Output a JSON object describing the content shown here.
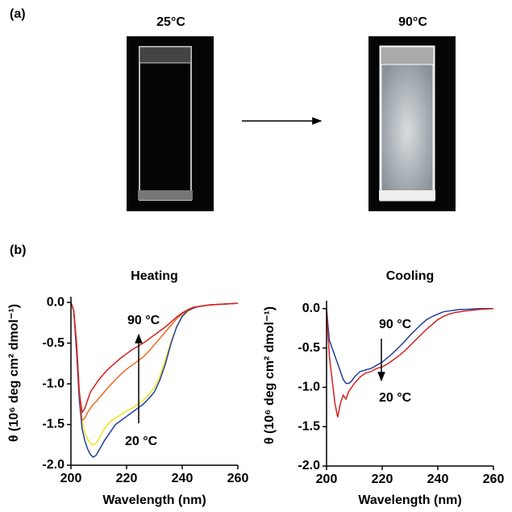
{
  "figure": {
    "panel_a_label": "(a)",
    "photos": [
      {
        "label": "25°C"
      },
      {
        "label": "90°C"
      }
    ],
    "panel_b_label": "(b)"
  },
  "chart_data": [
    {
      "type": "line",
      "title": "Heating",
      "x_label": "Wavelength (nm)",
      "y_label": "θ (10⁶ deg cm² dmol⁻¹)",
      "x": [
        200,
        201,
        202,
        203,
        204,
        205,
        206,
        207,
        208,
        209,
        210,
        212,
        214,
        216,
        218,
        220,
        222,
        224,
        226,
        228,
        230,
        232,
        234,
        236,
        238,
        240,
        242,
        244,
        246,
        248,
        250,
        255,
        260
      ],
      "series": [
        {
          "color": "#f2e61a",
          "values": [
            0,
            -0.1,
            -0.55,
            -1.1,
            -1.45,
            -1.6,
            -1.68,
            -1.73,
            -1.75,
            -1.73,
            -1.68,
            -1.55,
            -1.47,
            -1.42,
            -1.38,
            -1.33,
            -1.3,
            -1.25,
            -1.2,
            -1.13,
            -1.05,
            -0.9,
            -0.7,
            -0.48,
            -0.3,
            -0.18,
            -0.11,
            -0.07,
            -0.05,
            -0.04,
            -0.03,
            -0.02,
            -0.01
          ]
        },
        {
          "color": "#1f3fa0",
          "values": [
            0,
            -0.1,
            -0.6,
            -1.2,
            -1.55,
            -1.7,
            -1.8,
            -1.87,
            -1.9,
            -1.88,
            -1.82,
            -1.7,
            -1.6,
            -1.5,
            -1.45,
            -1.4,
            -1.35,
            -1.3,
            -1.25,
            -1.18,
            -1.1,
            -0.95,
            -0.75,
            -0.5,
            -0.3,
            -0.17,
            -0.1,
            -0.07,
            -0.05,
            -0.04,
            -0.03,
            -0.02,
            -0.01
          ]
        },
        {
          "color": "#ef6a1c",
          "values": [
            0,
            -0.1,
            -0.5,
            -1.1,
            -1.45,
            -1.42,
            -1.35,
            -1.3,
            -1.25,
            -1.22,
            -1.18,
            -1.1,
            -1.02,
            -0.95,
            -0.88,
            -0.82,
            -0.77,
            -0.72,
            -0.67,
            -0.6,
            -0.52,
            -0.44,
            -0.36,
            -0.28,
            -0.2,
            -0.14,
            -0.09,
            -0.06,
            -0.05,
            -0.04,
            -0.03,
            -0.02,
            -0.01
          ]
        },
        {
          "color": "#d62020",
          "values": [
            0,
            -0.1,
            -0.5,
            -1.1,
            -1.35,
            -1.3,
            -1.2,
            -1.1,
            -1.05,
            -1.0,
            -0.95,
            -0.87,
            -0.8,
            -0.74,
            -0.68,
            -0.63,
            -0.58,
            -0.54,
            -0.5,
            -0.45,
            -0.4,
            -0.35,
            -0.3,
            -0.24,
            -0.18,
            -0.13,
            -0.09,
            -0.06,
            -0.05,
            -0.04,
            -0.03,
            -0.02,
            -0.01
          ]
        }
      ],
      "annotations": [
        {
          "text": "90 °C",
          "color": "#d62020"
        },
        {
          "text": "20 °C",
          "color": "#1f3fa0"
        }
      ],
      "xlim": [
        200,
        260
      ],
      "xticks": [
        200,
        220,
        240,
        260
      ],
      "ylim": [
        -2.0,
        0.07
      ],
      "yticks": [
        {
          "value": 0,
          "label": "0.0"
        },
        {
          "value": -0.5,
          "label": "-0.5"
        },
        {
          "value": -1.0,
          "label": "-1.0"
        },
        {
          "value": -1.5,
          "label": "-1.5"
        },
        {
          "value": -2.0,
          "label": "-2.0"
        }
      ]
    },
    {
      "type": "line",
      "title": "Cooling",
      "x_label": "Wavelength (nm)",
      "y_label": "θ (10⁶ deg cm² dmol⁻¹)",
      "x": [
        200,
        201,
        202,
        203,
        204,
        205,
        206,
        207,
        208,
        209,
        210,
        212,
        214,
        216,
        218,
        220,
        222,
        224,
        226,
        228,
        230,
        232,
        234,
        236,
        238,
        240,
        242,
        244,
        246,
        248,
        250,
        255,
        260
      ],
      "series": [
        {
          "color": "#1f3fa0",
          "values": [
            0,
            -0.4,
            -0.5,
            -0.6,
            -0.7,
            -0.8,
            -0.9,
            -0.95,
            -0.95,
            -0.92,
            -0.87,
            -0.8,
            -0.78,
            -0.76,
            -0.72,
            -0.68,
            -0.62,
            -0.56,
            -0.49,
            -0.42,
            -0.34,
            -0.27,
            -0.2,
            -0.14,
            -0.1,
            -0.07,
            -0.04,
            -0.03,
            -0.02,
            -0.01,
            -0.01,
            0,
            0
          ]
        },
        {
          "color": "#d62020",
          "values": [
            0,
            -0.6,
            -0.9,
            -1.2,
            -1.38,
            -1.2,
            -1.1,
            -1.15,
            -1.05,
            -1.0,
            -0.95,
            -0.87,
            -0.82,
            -0.8,
            -0.76,
            -0.74,
            -0.7,
            -0.65,
            -0.6,
            -0.54,
            -0.47,
            -0.4,
            -0.33,
            -0.26,
            -0.2,
            -0.14,
            -0.1,
            -0.07,
            -0.05,
            -0.04,
            -0.03,
            -0.01,
            0
          ]
        }
      ],
      "annotations": [
        {
          "text": "90 °C",
          "color": "#d62020"
        },
        {
          "text": "20 °C",
          "color": "#1f3fa0"
        }
      ],
      "xlim": [
        200,
        260
      ],
      "xticks": [
        200,
        220,
        240,
        260
      ],
      "ylim": [
        -2.0,
        0.1
      ],
      "yticks": [
        {
          "value": 0,
          "label": "0.0"
        },
        {
          "value": -0.5,
          "label": "-0.5"
        },
        {
          "value": -1.0,
          "label": "-1.0"
        },
        {
          "value": -1.5,
          "label": "-1.5"
        },
        {
          "value": -2.0,
          "label": "-2.0"
        }
      ]
    }
  ]
}
